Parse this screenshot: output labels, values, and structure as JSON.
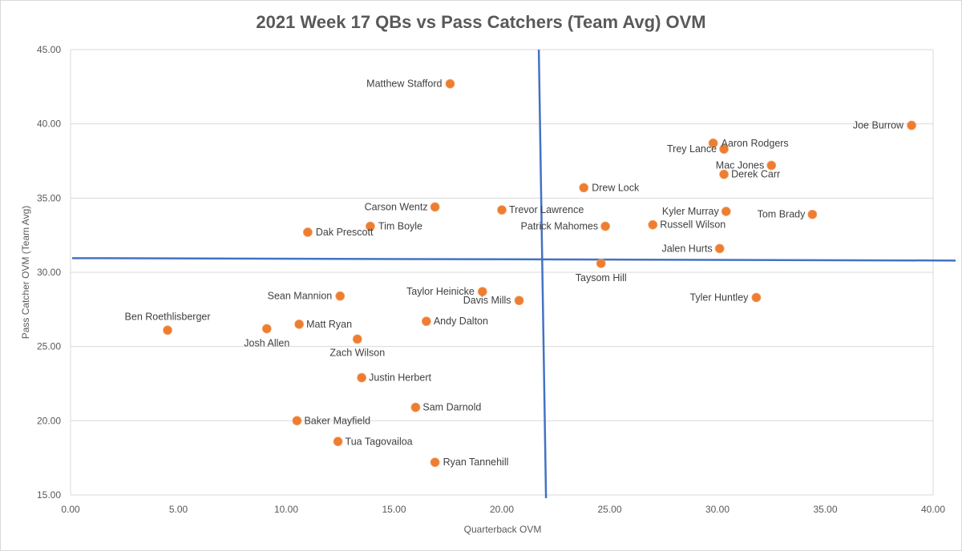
{
  "chart_data": {
    "type": "scatter",
    "title": "2021 Week 17 QBs vs Pass Catchers (Team Avg) OVM",
    "xlabel": "Quarterback OVM",
    "ylabel": "Pass Catcher OVM (Team Avg)",
    "xlim": [
      0,
      40
    ],
    "ylim": [
      15,
      45
    ],
    "xticks": [
      "0.00",
      "5.00",
      "10.00",
      "15.00",
      "20.00",
      "25.00",
      "30.00",
      "35.00",
      "40.00"
    ],
    "yticks": [
      "15.00",
      "20.00",
      "25.00",
      "30.00",
      "35.00",
      "40.00",
      "45.00"
    ],
    "grid": true,
    "point_color": "#ED7D31",
    "quadrant_line_color": "#4472C4",
    "quadrant_lines": {
      "vertical_x": 21.9,
      "horizontal_y": 30.9
    },
    "points": [
      {
        "label": "Matthew Stafford",
        "x": 17.6,
        "y": 42.7
      },
      {
        "label": "Joe Burrow",
        "x": 39.0,
        "y": 39.9
      },
      {
        "label": "Aaron Rodgers",
        "x": 29.8,
        "y": 38.7
      },
      {
        "label": "Trey Lance",
        "x": 30.3,
        "y": 38.3
      },
      {
        "label": "Mac Jones",
        "x": 32.5,
        "y": 37.2
      },
      {
        "label": "Derek Carr",
        "x": 30.3,
        "y": 36.6
      },
      {
        "label": "Drew Lock",
        "x": 23.8,
        "y": 35.7
      },
      {
        "label": "Carson Wentz",
        "x": 16.9,
        "y": 34.4
      },
      {
        "label": "Trevor Lawrence",
        "x": 20.0,
        "y": 34.2
      },
      {
        "label": "Kyler Murray",
        "x": 30.4,
        "y": 34.1
      },
      {
        "label": "Tom Brady",
        "x": 34.4,
        "y": 33.9
      },
      {
        "label": "Tim Boyle",
        "x": 13.9,
        "y": 33.1
      },
      {
        "label": "Patrick Mahomes",
        "x": 24.8,
        "y": 33.1
      },
      {
        "label": "Russell Wilson",
        "x": 27.0,
        "y": 33.2
      },
      {
        "label": "Dak Prescott",
        "x": 11.0,
        "y": 32.7
      },
      {
        "label": "Jalen Hurts",
        "x": 30.1,
        "y": 31.6
      },
      {
        "label": "Taysom Hill",
        "x": 24.6,
        "y": 30.6
      },
      {
        "label": "Taylor Heinicke",
        "x": 19.1,
        "y": 28.7
      },
      {
        "label": "Sean Mannion",
        "x": 12.5,
        "y": 28.4
      },
      {
        "label": "Davis Mills",
        "x": 20.8,
        "y": 28.1
      },
      {
        "label": "Tyler Huntley",
        "x": 31.8,
        "y": 28.3
      },
      {
        "label": "Andy Dalton",
        "x": 16.5,
        "y": 26.7
      },
      {
        "label": "Matt Ryan",
        "x": 10.6,
        "y": 26.5
      },
      {
        "label": "Ben Roethlisberger",
        "x": 4.5,
        "y": 26.1
      },
      {
        "label": "Josh Allen",
        "x": 9.1,
        "y": 26.2
      },
      {
        "label": "Zach Wilson",
        "x": 13.3,
        "y": 25.5
      },
      {
        "label": "Justin Herbert",
        "x": 13.5,
        "y": 22.9
      },
      {
        "label": "Sam Darnold",
        "x": 16.0,
        "y": 20.9
      },
      {
        "label": "Baker Mayfield",
        "x": 10.5,
        "y": 20.0
      },
      {
        "label": "Tua Tagovailoa",
        "x": 12.4,
        "y": 18.6
      },
      {
        "label": "Ryan Tannehill",
        "x": 16.9,
        "y": 17.2
      }
    ]
  }
}
